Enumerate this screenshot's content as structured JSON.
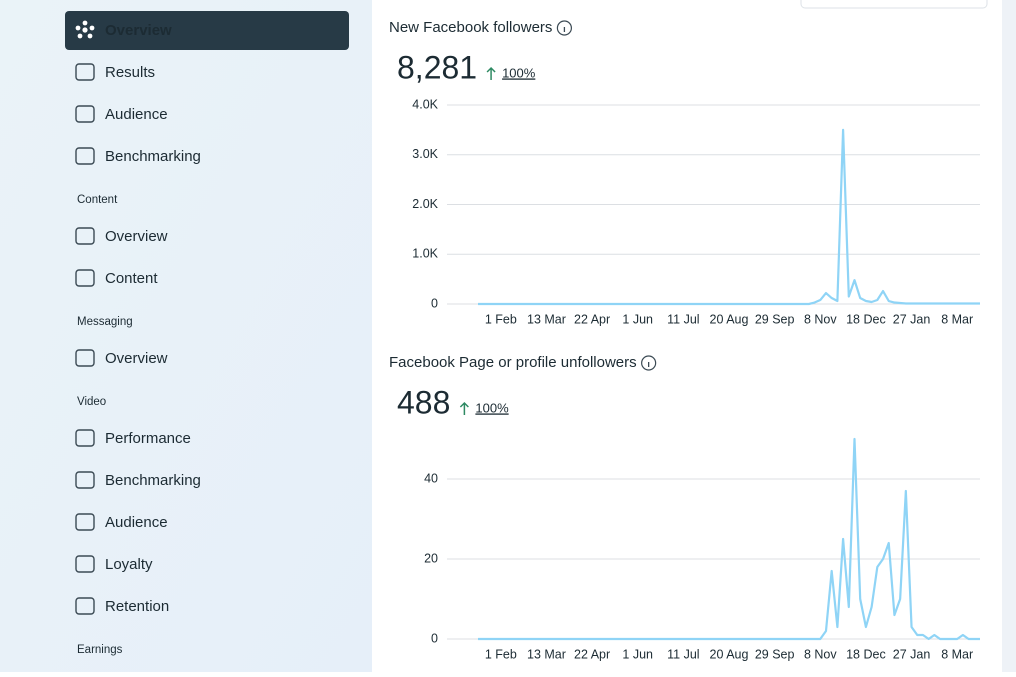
{
  "nav": [
    {
      "label": "Overview",
      "active": true
    },
    {
      "label": "Results"
    },
    {
      "label": "Audience"
    },
    {
      "label": "Benchmarking"
    },
    {
      "heading": "Content"
    },
    {
      "label": "Overview"
    },
    {
      "label": "Content"
    },
    {
      "heading": "Messaging"
    },
    {
      "label": "Overview"
    },
    {
      "heading": "Video"
    },
    {
      "label": "Performance"
    },
    {
      "label": "Benchmarking"
    },
    {
      "label": "Audience"
    },
    {
      "label": "Loyalty"
    },
    {
      "label": "Retention"
    },
    {
      "heading": "Earnings"
    }
  ],
  "chart_data": [
    {
      "type": "line",
      "title": "New Facebook followers",
      "total": "8,281",
      "change": "100%",
      "color": "#8fd4f6",
      "grid": true,
      "ylim": [
        0,
        4000
      ],
      "yticks": [
        0,
        {
          "value": 1000,
          "label": "1.0K"
        },
        {
          "value": 2000,
          "label": "2.0K"
        },
        {
          "value": 3000,
          "label": "3.0K"
        },
        {
          "value": 4000,
          "label": "4.0K"
        }
      ],
      "categories": [
        null,
        null,
        null,
        null,
        "1 Feb",
        null,
        null,
        null,
        null,
        null,
        null,
        null,
        "13 Mar",
        null,
        null,
        null,
        null,
        null,
        null,
        null,
        "22 Apr",
        null,
        null,
        null,
        null,
        null,
        null,
        null,
        "1 Jun",
        null,
        null,
        null,
        null,
        null,
        null,
        null,
        "11 Jul",
        null,
        null,
        null,
        null,
        null,
        null,
        null,
        "20 Aug",
        null,
        null,
        null,
        null,
        null,
        null,
        null,
        "29 Sep",
        null,
        null,
        null,
        null,
        null,
        null,
        null,
        "8 Nov",
        null,
        null,
        null,
        null,
        null,
        null,
        null,
        "18 Dec",
        null,
        null,
        null,
        null,
        null,
        null,
        null,
        "27 Jan",
        null,
        null,
        null,
        null,
        null,
        null,
        null,
        "8 Mar",
        null,
        null,
        null,
        null
      ],
      "values": [
        0,
        0,
        0,
        0,
        0,
        0,
        0,
        0,
        0,
        0,
        0,
        0,
        0,
        0,
        0,
        0,
        0,
        0,
        0,
        0,
        0,
        0,
        0,
        0,
        0,
        0,
        0,
        0,
        0,
        0,
        0,
        0,
        0,
        0,
        0,
        0,
        0,
        0,
        0,
        0,
        0,
        0,
        0,
        0,
        0,
        0,
        0,
        0,
        0,
        0,
        0,
        0,
        0,
        0,
        0,
        0,
        0,
        0,
        0,
        30,
        80,
        220,
        120,
        60,
        3500,
        150,
        480,
        120,
        60,
        40,
        80,
        260,
        60,
        30,
        20,
        10,
        10,
        10,
        10,
        10,
        10,
        10,
        10,
        10,
        10,
        10,
        10,
        10,
        10
      ]
    },
    {
      "type": "line",
      "title": "Facebook Page or profile unfollowers",
      "total": "488",
      "change": "100%",
      "color": "#8fd4f6",
      "grid": true,
      "ylim": [
        0,
        55
      ],
      "yticks": [
        0,
        20,
        40
      ],
      "categories": [
        null,
        null,
        null,
        null,
        "1 Feb",
        null,
        null,
        null,
        null,
        null,
        null,
        null,
        "13 Mar",
        null,
        null,
        null,
        null,
        null,
        null,
        null,
        "22 Apr",
        null,
        null,
        null,
        null,
        null,
        null,
        null,
        "1 Jun",
        null,
        null,
        null,
        null,
        null,
        null,
        null,
        "11 Jul",
        null,
        null,
        null,
        null,
        null,
        null,
        null,
        "20 Aug",
        null,
        null,
        null,
        null,
        null,
        null,
        null,
        "29 Sep",
        null,
        null,
        null,
        null,
        null,
        null,
        null,
        "8 Nov",
        null,
        null,
        null,
        null,
        null,
        null,
        null,
        "18 Dec",
        null,
        null,
        null,
        null,
        null,
        null,
        null,
        "27 Jan",
        null,
        null,
        null,
        null,
        null,
        null,
        null,
        "8 Mar",
        null,
        null,
        null,
        null
      ],
      "values": [
        0,
        0,
        0,
        0,
        0,
        0,
        0,
        0,
        0,
        0,
        0,
        0,
        0,
        0,
        0,
        0,
        0,
        0,
        0,
        0,
        0,
        0,
        0,
        0,
        0,
        0,
        0,
        0,
        0,
        0,
        0,
        0,
        0,
        0,
        0,
        0,
        0,
        0,
        0,
        0,
        0,
        0,
        0,
        0,
        0,
        0,
        0,
        0,
        0,
        0,
        0,
        0,
        0,
        0,
        0,
        0,
        0,
        0,
        0,
        0,
        0,
        2,
        17,
        3,
        25,
        8,
        50,
        10,
        3,
        8,
        18,
        20,
        24,
        6,
        10,
        37,
        3,
        1,
        1,
        0,
        1,
        0,
        0,
        0,
        0,
        1,
        0,
        0,
        0
      ]
    }
  ]
}
